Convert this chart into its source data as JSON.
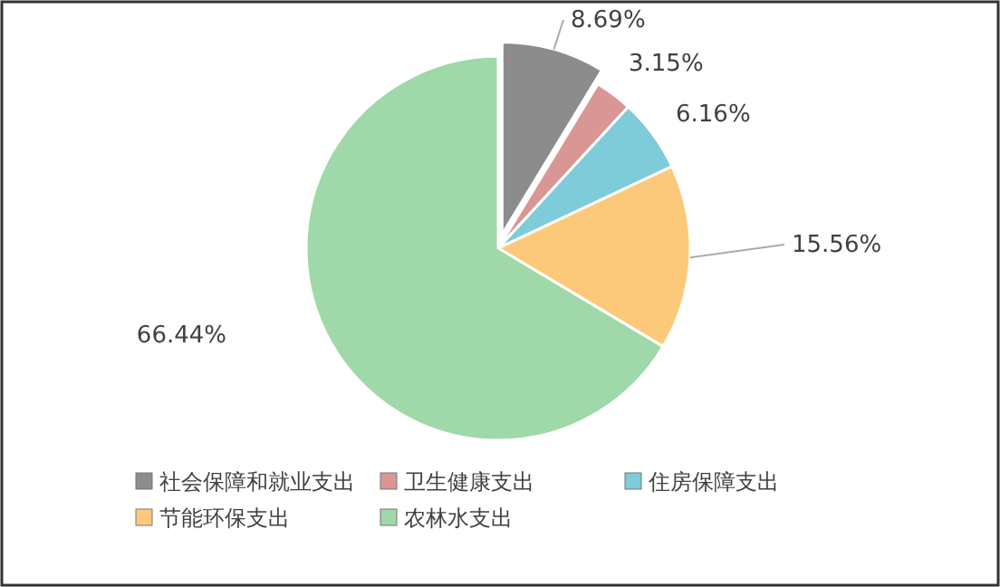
{
  "chart_data": {
    "type": "pie",
    "categories": [
      "社会保障和就业支出",
      "卫生健康支出",
      "住房保障支出",
      "节能环保支出",
      "农林水支出"
    ],
    "values": [
      8.69,
      3.15,
      6.16,
      15.56,
      66.44
    ],
    "colors": [
      "#8c8c8c",
      "#d99694",
      "#7ecbd9",
      "#fcc97a",
      "#9fd8a9"
    ],
    "value_labels": [
      "8.69%",
      "3.15%",
      "6.16%",
      "15.56%",
      "66.44%"
    ],
    "legend": "bottom"
  }
}
